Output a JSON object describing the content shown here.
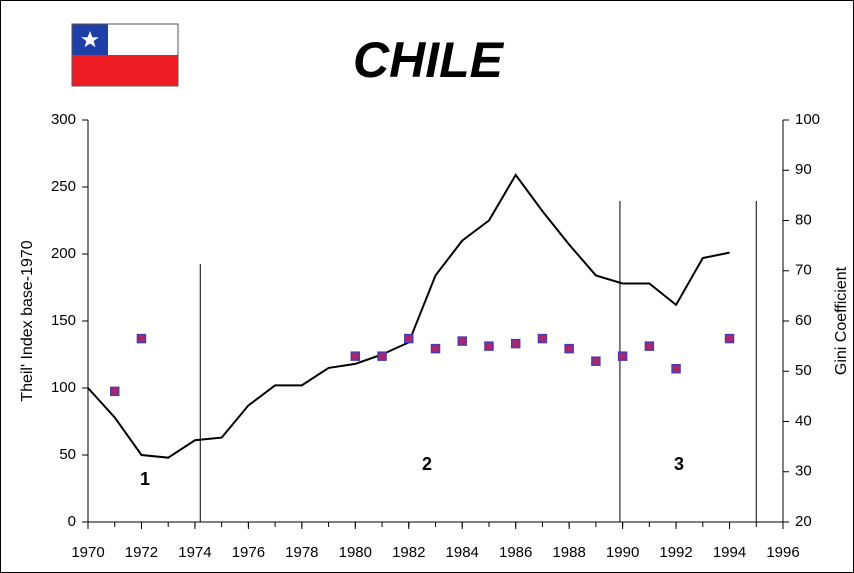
{
  "chart_data": {
    "type": "line",
    "title": "CHILE",
    "y_label": "Theil' Index base-1970",
    "y2_label": "Gini Coefficient",
    "x": [
      1970,
      1971,
      1972,
      1973,
      1974,
      1975,
      1976,
      1977,
      1978,
      1979,
      1980,
      1981,
      1982,
      1983,
      1984,
      1985,
      1986,
      1987,
      1988,
      1989,
      1990,
      1991,
      1992,
      1993,
      1994
    ],
    "series": [
      {
        "color": "#000000",
        "style": "line",
        "values": [
          100,
          78,
          50,
          48,
          61,
          63,
          87,
          102,
          102,
          115,
          118,
          125,
          134,
          184,
          210,
          225,
          259,
          232,
          207,
          184,
          178,
          178,
          162,
          197,
          201
        ]
      },
      {
        "color": "#b0246a",
        "style": "marker",
        "axis": "y2",
        "values": [
          null,
          46,
          56.5,
          null,
          null,
          null,
          null,
          null,
          null,
          null,
          53,
          53,
          56.5,
          54.5,
          56,
          55,
          55.5,
          56.5,
          54.5,
          52,
          53,
          55,
          50.5,
          null,
          56.5
        ]
      }
    ],
    "xlim": [
      1970,
      1996
    ],
    "xticks": [
      1970,
      1972,
      1974,
      1976,
      1978,
      1980,
      1982,
      1984,
      1986,
      1988,
      1990,
      1992,
      1994,
      1996
    ],
    "ylim": [
      0,
      300
    ],
    "yticks": [
      0,
      50,
      100,
      150,
      200,
      250,
      300
    ],
    "y2lim": [
      20,
      100
    ],
    "y2ticks": [
      20,
      30,
      40,
      50,
      60,
      70,
      80,
      90,
      100
    ],
    "period_boundaries": [
      1974.2,
      1989.9,
      1995
    ],
    "period_labels": [
      "1",
      "2",
      "3"
    ]
  }
}
